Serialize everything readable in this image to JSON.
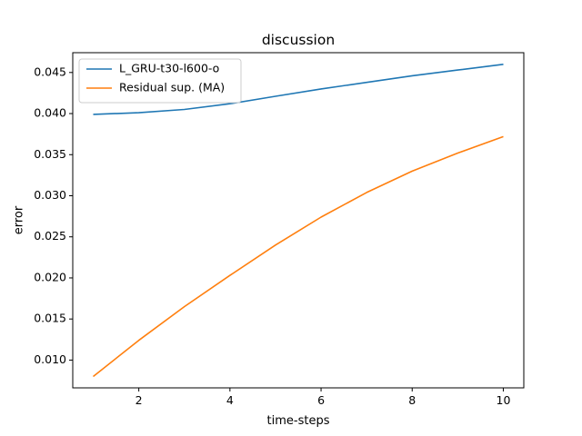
{
  "chart_data": {
    "type": "line",
    "title": "discussion",
    "xlabel": "time-steps",
    "ylabel": "error",
    "xlim": [
      0.55,
      10.45
    ],
    "ylim": [
      0.00662,
      0.04741
    ],
    "xticks": [
      2,
      4,
      6,
      8,
      10
    ],
    "yticks": [
      0.01,
      0.015,
      0.02,
      0.025,
      0.03,
      0.035,
      0.04,
      0.045
    ],
    "ytick_labels": [
      "0.010",
      "0.015",
      "0.020",
      "0.025",
      "0.030",
      "0.035",
      "0.040",
      "0.045"
    ],
    "grid": false,
    "legend_position": "top-left",
    "x": [
      1,
      2,
      3,
      4,
      5,
      6,
      7,
      8,
      9,
      10
    ],
    "series": [
      {
        "name": "L_GRU-t30-l600-o",
        "color": "#1f77b4",
        "values": [
          0.0399,
          0.0401,
          0.0405,
          0.0412,
          0.0421,
          0.043,
          0.0438,
          0.0446,
          0.0453,
          0.046
        ]
      },
      {
        "name": "Residual sup. (MA)",
        "color": "#ff7f0e",
        "values": [
          0.008,
          0.0124,
          0.0165,
          0.0203,
          0.024,
          0.0274,
          0.0304,
          0.033,
          0.0352,
          0.0372
        ]
      }
    ]
  }
}
